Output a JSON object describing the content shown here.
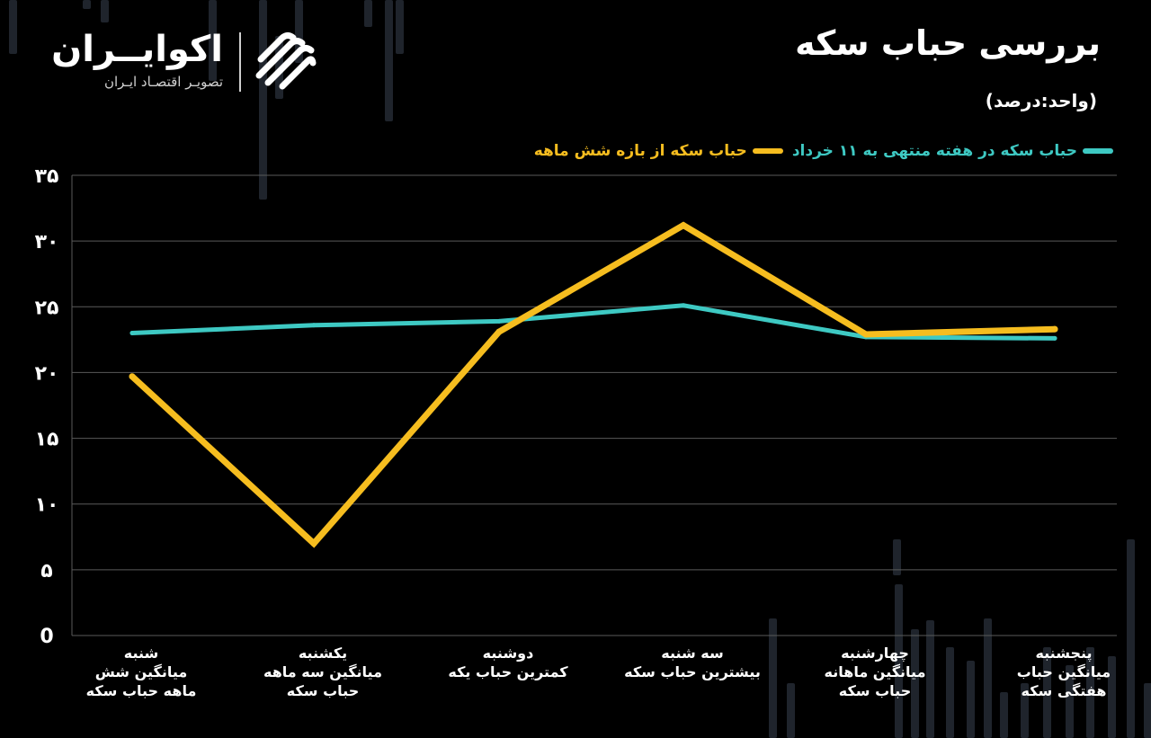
{
  "brand": {
    "name": "اکوایــران",
    "tagline": "تصویـر اقتصـاد ایـران"
  },
  "header": {
    "title": "بررسی حباب سکه",
    "subtitle": "(واحد:درصد)"
  },
  "colors": {
    "teal": "#3ec9c3",
    "yellow": "#f6bd1f",
    "grid": "#5a5a5a",
    "background": "#000000"
  },
  "chart_data": {
    "type": "line",
    "title": "بررسی حباب سکه",
    "ylabel": "(واحد:درصد)",
    "ylim": [
      0,
      35
    ],
    "yticks": [
      0,
      5,
      10,
      15,
      20,
      25,
      30,
      35
    ],
    "ytick_labels": [
      "0",
      "۵",
      "۱۰",
      "۱۵",
      "۲۰",
      "۲۵",
      "۳۰",
      "۳۵"
    ],
    "grid": true,
    "legend_position": "top-right",
    "categories": [
      [
        "شنبه",
        "میانگین شش",
        "ماهه حباب سکه"
      ],
      [
        "یکشنبه",
        "میانگین سه ماهه",
        "حباب سکه"
      ],
      [
        "دوشنبه",
        "کمترین حباب یکه"
      ],
      [
        "سه شنبه",
        "بیشترین حباب سکه"
      ],
      [
        "چهارشنبه",
        "میانگین ماهانه",
        "حباب سکه"
      ],
      [
        "پنجشنبه",
        "میانگین حباب",
        "هفتگی سکه"
      ]
    ],
    "series": [
      {
        "name": "حباب سکه در هفته منتهی به ۱۱ خرداد",
        "color": "#3ec9c3",
        "values": [
          23.0,
          23.6,
          23.9,
          25.1,
          22.7,
          22.6
        ]
      },
      {
        "name": "حباب سکه از بازه شش ماهه",
        "color": "#f6bd1f",
        "values": [
          19.7,
          7.0,
          23.1,
          31.2,
          22.9,
          23.3
        ]
      }
    ]
  }
}
